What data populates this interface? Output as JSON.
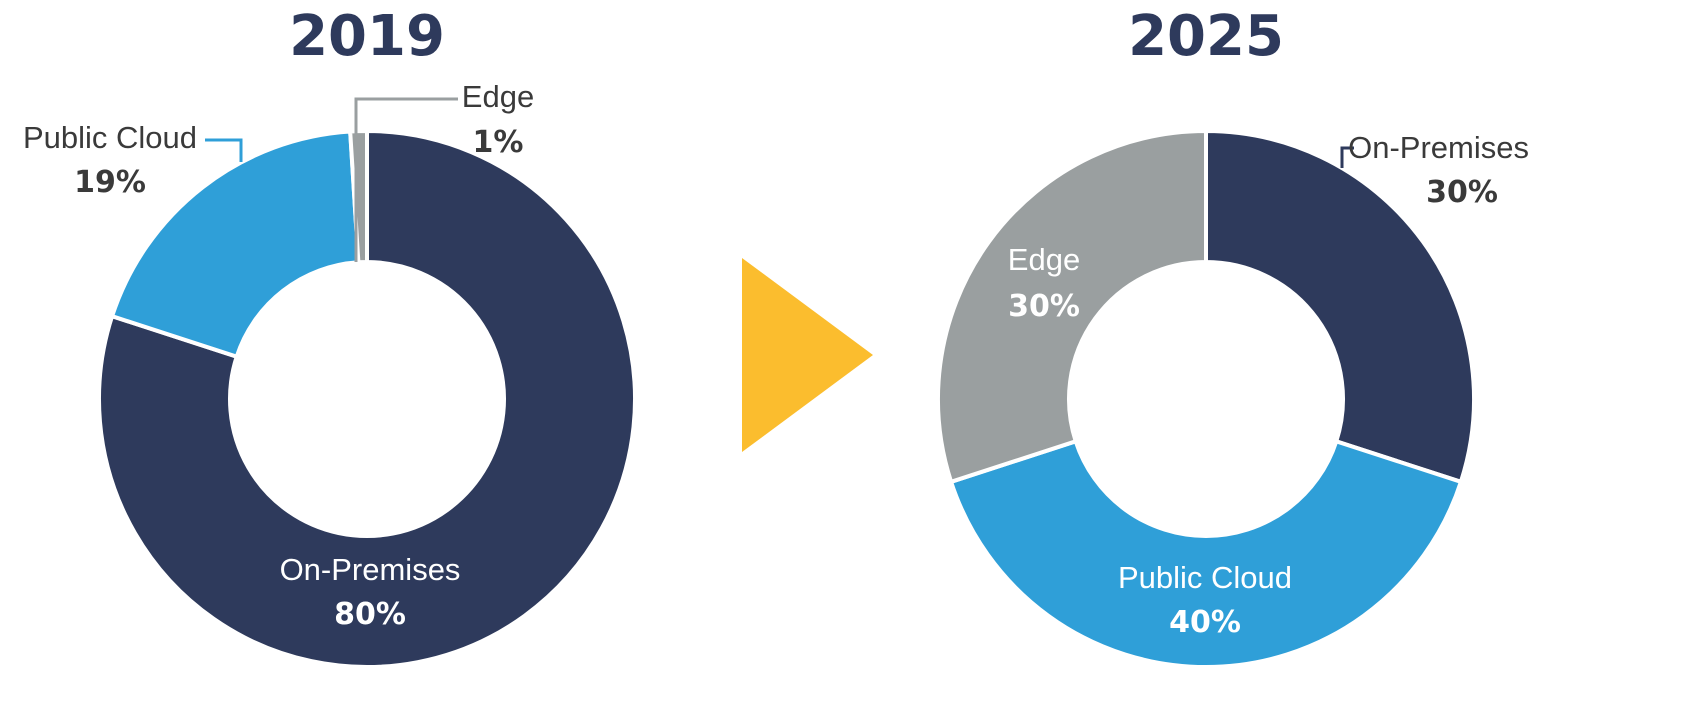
{
  "chart_data": [
    {
      "type": "pie",
      "title": "2019",
      "slices": [
        {
          "label": "On-Premises",
          "value": 80,
          "value_label": "80%",
          "color": "#2e3a5c",
          "label_color": "#ffffff",
          "label_placement": "inside"
        },
        {
          "label": "Public Cloud",
          "value": 19,
          "value_label": "19%",
          "color": "#2f9fd8",
          "label_color": "#3a3a3a",
          "label_placement": "outside-left"
        },
        {
          "label": "Edge",
          "value": 1,
          "value_label": "1%",
          "color": "#9a9fa0",
          "label_color": "#3a3a3a",
          "label_placement": "outside-top"
        }
      ]
    },
    {
      "type": "pie",
      "title": "2025",
      "slices": [
        {
          "label": "On-Premises",
          "value": 30,
          "value_label": "30%",
          "color": "#2e3a5c",
          "label_color": "#3a3a3a",
          "label_placement": "outside-right"
        },
        {
          "label": "Public Cloud",
          "value": 40,
          "value_label": "40%",
          "color": "#2f9fd8",
          "label_color": "#ffffff",
          "label_placement": "inside"
        },
        {
          "label": "Edge",
          "value": 30,
          "value_label": "30%",
          "color": "#9a9fa0",
          "label_color": "#ffffff",
          "label_placement": "inside"
        }
      ]
    }
  ],
  "colors": {
    "title": "#2e3a5c",
    "arrow": "#fbbd2e",
    "background": "#ffffff",
    "separator": "#ffffff"
  },
  "arrow_icon": "play-triangle-icon"
}
